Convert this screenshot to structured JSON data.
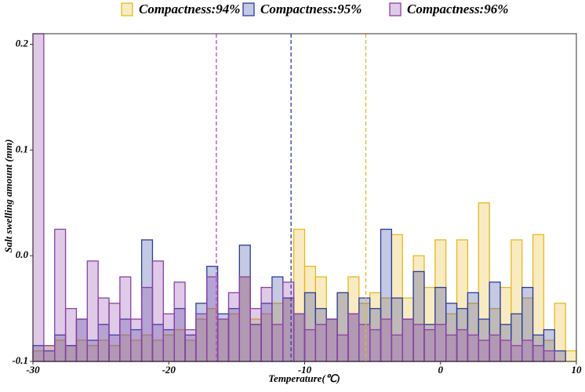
{
  "chart_data": {
    "type": "histogram",
    "xlabel": "Temperature(℃)",
    "ylabel": "Salt swelling amount (mm)",
    "bins": [
      -30,
      -29.2,
      -28.4,
      -27.6,
      -26.8,
      -26,
      -25.2,
      -24.4,
      -23.6,
      -22.8,
      -22,
      -21.2,
      -20.4,
      -19.6,
      -18.8,
      -18,
      -17.2,
      -16.4,
      -15.6,
      -14.8,
      -14,
      -13.2,
      -12.4,
      -11.6,
      -10.8,
      -10,
      -9.2,
      -8.4,
      -7.6,
      -6.8,
      -6,
      -5.2,
      -4.4,
      -3.6,
      -2.8,
      -2,
      -1.2,
      -0.4,
      0.4,
      1.2,
      2,
      2.8,
      3.6,
      4.4,
      5.2,
      6,
      6.8,
      7.6,
      8.4,
      9.2,
      10
    ],
    "series": [
      {
        "name": "Compactness:94%",
        "color": "#e8b820",
        "values": [
          -0.09,
          -0.085,
          -0.08,
          -0.085,
          -0.08,
          -0.085,
          -0.08,
          -0.085,
          -0.075,
          -0.08,
          -0.075,
          -0.08,
          -0.075,
          -0.07,
          -0.08,
          -0.06,
          -0.05,
          -0.06,
          -0.055,
          -0.02,
          -0.06,
          -0.055,
          -0.045,
          -0.04,
          0.025,
          -0.01,
          -0.02,
          -0.06,
          -0.035,
          -0.02,
          -0.045,
          -0.035,
          -0.04,
          0.02,
          -0.04,
          0,
          -0.03,
          0.015,
          -0.055,
          0.015,
          -0.045,
          0.05,
          -0.05,
          -0.03,
          0.015,
          -0.04,
          0.02,
          -0.08,
          -0.045,
          -0.09
        ]
      },
      {
        "name": "Compactness:95%",
        "color": "#2a3d9e",
        "values": [
          -0.085,
          -0.09,
          -0.075,
          -0.085,
          -0.06,
          -0.08,
          -0.065,
          -0.075,
          -0.06,
          -0.07,
          0.015,
          -0.065,
          -0.07,
          -0.05,
          -0.075,
          -0.045,
          -0.01,
          -0.055,
          -0.05,
          0.01,
          -0.065,
          -0.045,
          -0.02,
          -0.04,
          -0.055,
          -0.035,
          -0.05,
          -0.06,
          -0.035,
          -0.055,
          -0.04,
          -0.05,
          0.025,
          -0.04,
          -0.06,
          -0.015,
          -0.065,
          -0.03,
          -0.045,
          -0.05,
          -0.035,
          -0.06,
          -0.025,
          -0.065,
          -0.055,
          -0.03,
          -0.075,
          -0.07,
          -0.09,
          -0.1
        ]
      },
      {
        "name": "Compactness:96%",
        "color": "#8b3fa8",
        "values": [
          0.21,
          -0.085,
          0.025,
          -0.05,
          -0.06,
          -0.005,
          -0.04,
          -0.045,
          -0.02,
          -0.06,
          -0.03,
          -0.005,
          -0.055,
          -0.025,
          -0.07,
          -0.055,
          -0.02,
          -0.06,
          -0.035,
          -0.02,
          -0.05,
          -0.03,
          -0.065,
          -0.025,
          -0.055,
          -0.07,
          -0.065,
          -0.06,
          -0.075,
          -0.055,
          -0.065,
          -0.07,
          -0.06,
          -0.075,
          -0.06,
          -0.065,
          -0.07,
          -0.065,
          -0.075,
          -0.07,
          -0.075,
          -0.08,
          -0.075,
          -0.08,
          -0.085,
          -0.08,
          -0.085,
          -0.09,
          -0.1,
          -0.1
        ]
      }
    ],
    "vlines": [
      {
        "value": -16.5,
        "color": "#b04fc0"
      },
      {
        "value": -11,
        "color": "#2a3d9e"
      },
      {
        "value": -5.5,
        "color": "#e8b820"
      }
    ],
    "xlim": [
      -30,
      10
    ],
    "xticks": [
      -30,
      -20,
      -10,
      0,
      10
    ],
    "ylim": [
      -0.1,
      0.21
    ],
    "yticks": [
      -0.1,
      {
        "value": 0,
        "label": "0.0"
      },
      0.1,
      0.2
    ],
    "legend": "top"
  }
}
